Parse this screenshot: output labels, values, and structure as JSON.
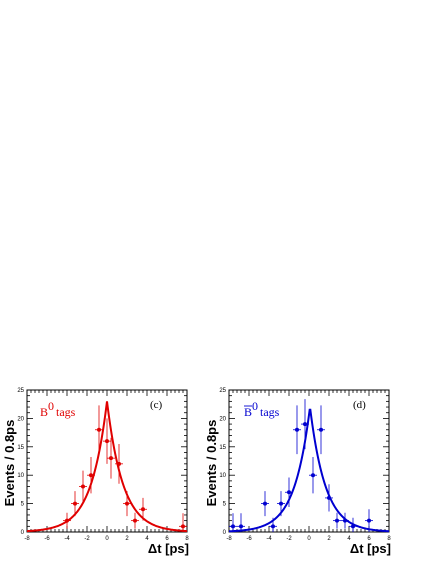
{
  "chart_data": [
    {
      "type": "scatter",
      "panel_label": "(c)",
      "legend": {
        "symbol": "B",
        "superscript": "0",
        "bar": false,
        "suffix": "tags"
      },
      "color": "#e00000",
      "xlabel": "Δt [ps]",
      "ylabel": "Events / 0.8ps",
      "xlim": [
        -8,
        8
      ],
      "ylim": [
        0,
        25
      ],
      "x_major_ticks": [
        -8,
        -6,
        -4,
        -2,
        0,
        2,
        4,
        6,
        8
      ],
      "y_major_ticks": [
        0,
        5,
        10,
        15,
        20,
        25
      ],
      "x_tick_labels": [
        "-8",
        "-6",
        "-4",
        "-2",
        "0",
        "2",
        "4",
        "6",
        "8"
      ],
      "y_tick_labels": [
        "0",
        "5",
        "10",
        "15",
        "20",
        "25"
      ],
      "points": [
        {
          "x": -4.0,
          "y": 2,
          "err": 1.4
        },
        {
          "x": -3.2,
          "y": 5,
          "err": 2.2
        },
        {
          "x": -2.4,
          "y": 8,
          "err": 2.8
        },
        {
          "x": -1.6,
          "y": 10,
          "err": 3.2
        },
        {
          "x": -0.8,
          "y": 18,
          "err": 4.3
        },
        {
          "x": 0.0,
          "y": 16,
          "err": 4.0
        },
        {
          "x": 0.4,
          "y": 13,
          "err": 3.6
        },
        {
          "x": 1.2,
          "y": 12,
          "err": 3.5
        },
        {
          "x": 2.0,
          "y": 5,
          "err": 2.2
        },
        {
          "x": 2.8,
          "y": 2,
          "err": 1.4
        },
        {
          "x": 3.6,
          "y": 4,
          "err": 2.0
        },
        {
          "x": 7.6,
          "y": 1,
          "err": 2.3
        }
      ],
      "fit": {
        "peak": 23,
        "center": 0.0,
        "tau": 1.6
      }
    },
    {
      "type": "scatter",
      "panel_label": "(d)",
      "legend": {
        "symbol": "B",
        "superscript": "0",
        "bar": true,
        "suffix": "tags"
      },
      "color": "#0000d0",
      "xlabel": "Δt [ps]",
      "ylabel": "Events / 0.8ps",
      "xlim": [
        -8,
        8
      ],
      "ylim": [
        0,
        25
      ],
      "x_major_ticks": [
        -8,
        -6,
        -4,
        -2,
        0,
        2,
        4,
        6,
        8
      ],
      "y_major_ticks": [
        0,
        5,
        10,
        15,
        20,
        25
      ],
      "x_tick_labels": [
        "-8",
        "-6",
        "-4",
        "-2",
        "0",
        "2",
        "4",
        "6",
        "8"
      ],
      "y_tick_labels": [
        "0",
        "5",
        "10",
        "15",
        "20",
        "25"
      ],
      "points": [
        {
          "x": -7.6,
          "y": 1,
          "err": 2.3
        },
        {
          "x": -6.8,
          "y": 1,
          "err": 2.3
        },
        {
          "x": -4.4,
          "y": 5,
          "err": 2.2
        },
        {
          "x": -3.6,
          "y": 1,
          "err": 1.5
        },
        {
          "x": -2.8,
          "y": 5,
          "err": 2.2
        },
        {
          "x": -2.0,
          "y": 7,
          "err": 2.6
        },
        {
          "x": -1.2,
          "y": 18,
          "err": 4.3
        },
        {
          "x": -0.4,
          "y": 19,
          "err": 4.4
        },
        {
          "x": 0.4,
          "y": 10,
          "err": 3.2
        },
        {
          "x": 1.2,
          "y": 18,
          "err": 4.3
        },
        {
          "x": 2.0,
          "y": 6,
          "err": 2.4
        },
        {
          "x": 2.8,
          "y": 2,
          "err": 1.4
        },
        {
          "x": 3.6,
          "y": 2,
          "err": 1.4
        },
        {
          "x": 4.4,
          "y": 1,
          "err": 1.5
        },
        {
          "x": 6.0,
          "y": 2,
          "err": 2.0
        }
      ],
      "fit": {
        "peak": 22,
        "center": 0.1,
        "tau": 1.55
      }
    }
  ]
}
